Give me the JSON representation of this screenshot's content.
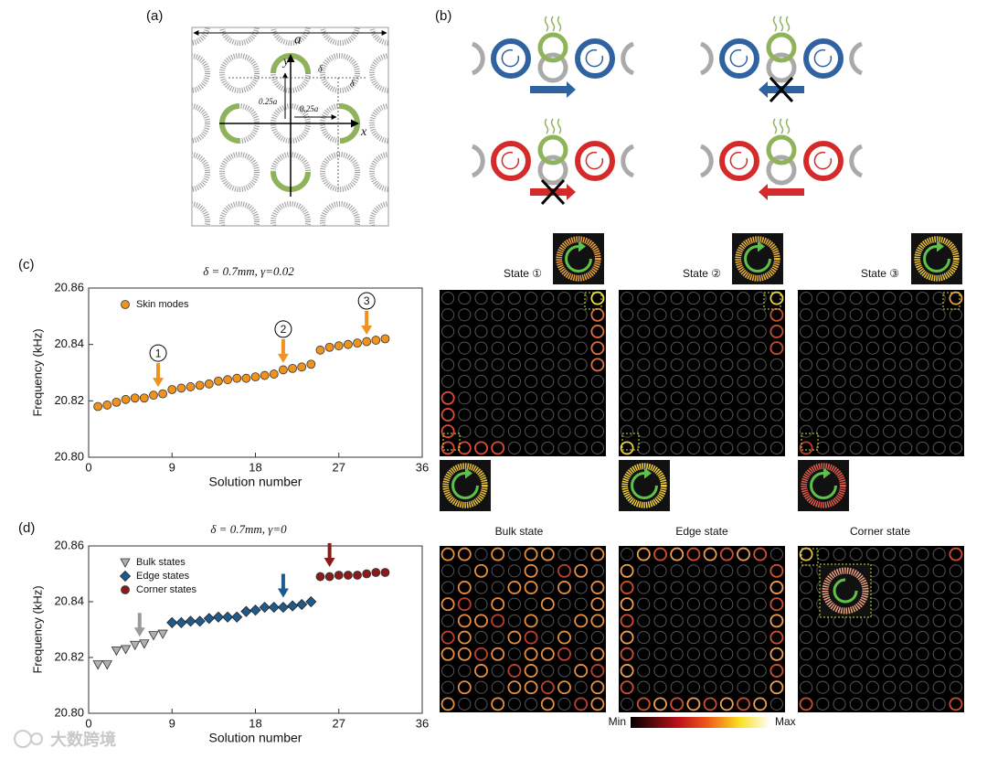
{
  "panel_labels": [
    "(a)",
    "(b)",
    "(c)",
    "(d)"
  ],
  "diagram_a": {
    "lattice_label": "a",
    "y_axis": "y",
    "x_axis": "x",
    "delta_1": "δ",
    "delta_2": "δ",
    "offset_y": "0.25a",
    "offset_x": "0.25a"
  },
  "chart_data": [
    {
      "type": "scatter",
      "title": "δ = 0.7mm, γ=0.02",
      "x_label": "Solution number",
      "y_label": "Frequency (kHz)",
      "xlim": [
        0,
        36
      ],
      "xticks": [
        0,
        9,
        18,
        27,
        36
      ],
      "ylim": [
        20.8,
        20.86
      ],
      "yticks": [
        {
          "value": 20.8,
          "label": "20.80"
        },
        20.82,
        20.84,
        20.86
      ],
      "legend": "upper left",
      "series": [
        {
          "name": "Skin modes",
          "color": "#f0921e",
          "marker": "circle",
          "x": [
            1,
            2,
            3,
            4,
            5,
            6,
            7,
            8,
            9,
            10,
            11,
            12,
            13,
            14,
            15,
            16,
            17,
            18,
            19,
            20,
            21,
            22,
            23,
            24,
            25,
            26,
            27,
            28,
            29,
            30,
            31,
            32
          ],
          "values": [
            20.818,
            20.8185,
            20.8195,
            20.8205,
            20.821,
            20.821,
            20.822,
            20.8225,
            20.824,
            20.8245,
            20.825,
            20.8255,
            20.826,
            20.827,
            20.8275,
            20.828,
            20.828,
            20.8285,
            20.829,
            20.8295,
            20.831,
            20.8315,
            20.832,
            20.833,
            20.838,
            20.839,
            20.8395,
            20.84,
            20.8405,
            20.841,
            20.8415,
            20.842
          ]
        }
      ],
      "annotations": [
        {
          "text": "1",
          "x": 7.5,
          "y": 20.823,
          "color": "#f0921e"
        },
        {
          "text": "2",
          "x": 21,
          "y": 20.8315,
          "color": "#f0921e"
        },
        {
          "text": "3",
          "x": 30,
          "y": 20.8415,
          "color": "#f0921e"
        }
      ]
    },
    {
      "type": "scatter",
      "title": "δ = 0.7mm, γ=0",
      "x_label": "Solution number",
      "y_label": "Frequency (kHz)",
      "xlim": [
        0,
        36
      ],
      "xticks": [
        0,
        9,
        18,
        27,
        36
      ],
      "ylim": [
        20.8,
        20.86
      ],
      "yticks": [
        {
          "value": 20.8,
          "label": "20.80"
        },
        20.82,
        20.84,
        20.86
      ],
      "legend": "upper left",
      "series": [
        {
          "name": "Bulk states",
          "color": "#b0b0b0",
          "marker": "triangle",
          "x": [
            1,
            2,
            3,
            4,
            5,
            6,
            7,
            8
          ],
          "values": [
            20.8175,
            20.8175,
            20.8225,
            20.823,
            20.8245,
            20.825,
            20.828,
            20.8285
          ]
        },
        {
          "name": "Edge states",
          "color": "#1f5a8c",
          "marker": "diamond",
          "x": [
            9,
            10,
            11,
            12,
            13,
            14,
            15,
            16,
            17,
            18,
            19,
            20,
            21,
            22,
            23,
            24
          ],
          "values": [
            20.8325,
            20.8325,
            20.833,
            20.833,
            20.834,
            20.8345,
            20.8345,
            20.8345,
            20.8365,
            20.837,
            20.838,
            20.838,
            20.838,
            20.8385,
            20.839,
            20.84
          ]
        },
        {
          "name": "Corner states",
          "color": "#8b1a1a",
          "marker": "circle",
          "x": [
            25,
            26,
            27,
            28,
            29,
            30,
            31,
            32
          ],
          "values": [
            20.849,
            20.849,
            20.8495,
            20.8495,
            20.8495,
            20.85,
            20.8505,
            20.8505
          ]
        }
      ],
      "annotations": [
        {
          "x": 5.5,
          "y": 20.8255,
          "color": "#999999"
        },
        {
          "x": 21,
          "y": 20.8395,
          "color": "#1f5a8c"
        },
        {
          "x": 26,
          "y": 20.8505,
          "color": "#8b1a1a"
        }
      ]
    }
  ],
  "maps_c": [
    "State ①",
    "State ②",
    "State ③"
  ],
  "maps_d": [
    "Bulk state",
    "Edge state",
    "Corner state"
  ],
  "colorbar": {
    "min": "Min",
    "max": "Max"
  },
  "watermark": "大数跨境"
}
